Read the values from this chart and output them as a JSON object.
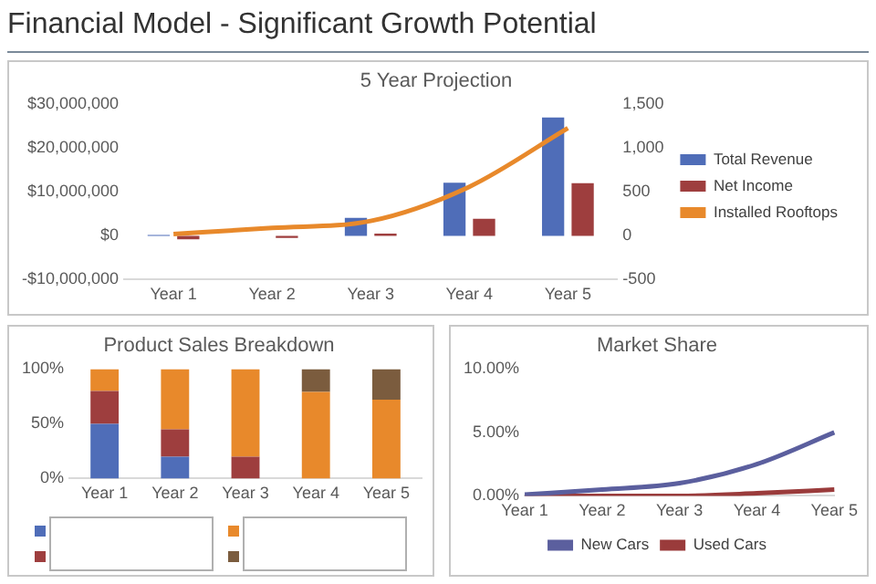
{
  "chart_data": [
    {
      "type": "other",
      "title": "Financial Model - Significant Growth Potential"
    },
    {
      "type": "bar",
      "title": "5 Year Projection",
      "categories": [
        "Year 1",
        "Year 2",
        "Year 3",
        "Year 4",
        "Year 5"
      ],
      "series": [
        {
          "name": "Total Revenue",
          "color": "#4f6db8",
          "values": [
            200000,
            0,
            4100000,
            12100000,
            27000000
          ]
        },
        {
          "name": "Net Income",
          "color": "#9e3e3e",
          "values": [
            -800000,
            -500000,
            500000,
            3900000,
            12000000
          ]
        },
        {
          "name": "Installed Rooftops",
          "color": "#e8892b",
          "type": "line",
          "axis": "y2",
          "values": [
            20,
            90,
            170,
            560,
            1230
          ]
        }
      ],
      "ylim": [
        -10000000,
        30000000
      ],
      "yticks": [
        {
          "value": -10000000,
          "label": "-$10,000,000"
        },
        {
          "value": 0,
          "label": "$0"
        },
        {
          "value": 10000000,
          "label": "$10,000,000"
        },
        {
          "value": 20000000,
          "label": "$20,000,000"
        },
        {
          "value": 30000000,
          "label": "$30,000,000"
        }
      ],
      "y2lim": [
        -500,
        1500
      ],
      "y2ticks": [
        -500,
        0,
        500,
        {
          "value": 1000,
          "label": "1,000"
        },
        {
          "value": 1500,
          "label": "1,500"
        }
      ],
      "grid": false,
      "legend": "right",
      "marker": "none"
    },
    {
      "type": "bar",
      "title": "Product Sales Breakdown",
      "categories": [
        "Year 1",
        "Year 2",
        "Year 3",
        "Year 4",
        "Year 5"
      ],
      "stacked": true,
      "series": [
        {
          "color": "#4f6db8",
          "values": [
            50,
            20,
            0,
            0,
            0
          ]
        },
        {
          "color": "#9e3e3e",
          "values": [
            30,
            25,
            20,
            0,
            0
          ]
        },
        {
          "color": "#e8892b",
          "values": [
            20,
            55,
            80,
            79,
            72
          ]
        },
        {
          "color": "#7b5c3e",
          "values": [
            0,
            0,
            0,
            21,
            28
          ]
        }
      ],
      "ylim": [
        0,
        100
      ],
      "yticks": [
        {
          "value": 0,
          "label": "0%"
        },
        {
          "value": 50,
          "label": "50%"
        },
        {
          "value": 100,
          "label": "100%"
        }
      ],
      "grid": false,
      "legend": "bottom"
    },
    {
      "type": "line",
      "title": "Market Share",
      "categories": [
        "Year 1",
        "Year 2",
        "Year 3",
        "Year 4",
        "Year 5"
      ],
      "series": [
        {
          "name": "New Cars",
          "color": "#5b5f9e",
          "values": [
            0.1,
            0.5,
            1.0,
            2.5,
            5.0
          ]
        },
        {
          "name": "Used Cars",
          "color": "#9a3b3b",
          "values": [
            0,
            0,
            0,
            0.2,
            0.5
          ]
        }
      ],
      "ylim": [
        0,
        10
      ],
      "yticks": [
        {
          "value": 0,
          "label": "0.00%"
        },
        {
          "value": 5,
          "label": "5.00%"
        },
        {
          "value": 10,
          "label": "10.00%"
        }
      ],
      "grid": false,
      "legend": "bottom",
      "marker": "none"
    }
  ]
}
